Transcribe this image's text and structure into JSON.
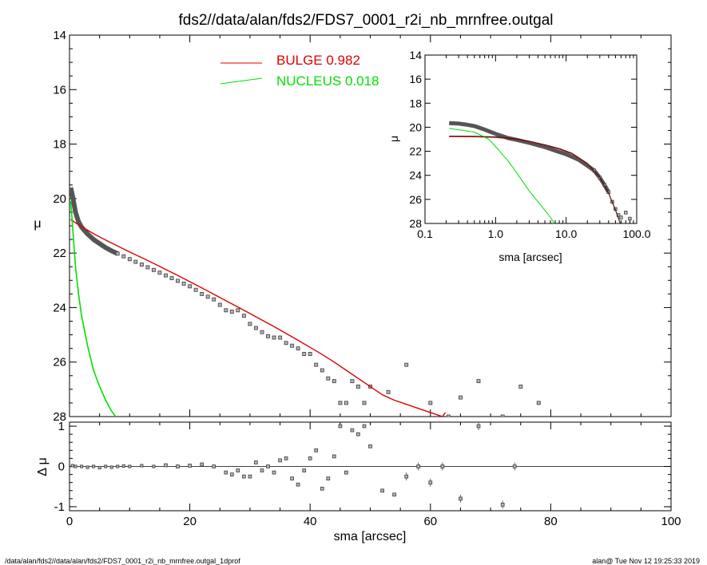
{
  "title": "fds2//data/alan/fds2/FDS7_0001_r2i_nb_mrnfree.outgal",
  "footer_left": "/data/alan/fds2//data/alan/fds2/FDS7_0001_r2i_nb_mrnfree.outgal_1dprof",
  "footer_right": "alan@  Tue Nov 12 19:25:33 2019",
  "colors": {
    "bulge": "#e00000",
    "nucleus": "#00e000",
    "data": "#666666"
  },
  "chart_data": [
    {
      "panel": "main",
      "type": "scatter",
      "xlabel": "sma [arcsec]",
      "ylabel": "μ",
      "xlim": [
        0,
        100
      ],
      "ylim": [
        28,
        14
      ],
      "xticks": [
        "0",
        "20",
        "40",
        "60",
        "80",
        "100"
      ],
      "yticks": [
        "14",
        "16",
        "18",
        "20",
        "22",
        "24",
        "26",
        "28"
      ],
      "legend": [
        {
          "name": "BULGE",
          "value": "0.982"
        },
        {
          "name": "NUCLEUS",
          "value": "0.018"
        }
      ],
      "bulge_model": {
        "x": [
          0.2,
          1,
          2,
          4,
          6,
          8,
          10,
          12,
          14,
          16,
          18,
          20,
          22,
          24,
          26,
          28,
          30,
          32,
          34,
          36,
          38,
          40,
          42,
          44,
          46,
          48,
          50,
          52,
          54,
          56,
          58,
          60,
          62,
          62.5
        ],
        "y": [
          20.77,
          20.89,
          21.03,
          21.29,
          21.52,
          21.74,
          21.96,
          22.17,
          22.38,
          22.6,
          22.82,
          23.05,
          23.28,
          23.51,
          23.75,
          23.98,
          24.22,
          24.46,
          24.7,
          24.95,
          25.2,
          25.46,
          25.72,
          26.0,
          26.3,
          26.6,
          26.9,
          27.2,
          27.4,
          27.55,
          27.7,
          27.85,
          28.0,
          27.85
        ]
      },
      "nucleus_model": {
        "x": [
          0.2,
          0.5,
          1,
          1.5,
          2,
          3,
          4,
          5,
          6,
          7,
          8
        ],
        "y": [
          20.1,
          21.0,
          22.5,
          23.5,
          24.3,
          25.4,
          26.3,
          26.9,
          27.4,
          27.8,
          28.1
        ]
      },
      "observed_profile": {
        "x": [
          0.2,
          0.5,
          1,
          1.5,
          2,
          3,
          4,
          5,
          6,
          7,
          8,
          9,
          10,
          11,
          12,
          13,
          14,
          15,
          16,
          17,
          18,
          19,
          20,
          21,
          22,
          23,
          24,
          25,
          26,
          27,
          28,
          29,
          30,
          31,
          32,
          33,
          34,
          35,
          36,
          37,
          38,
          39,
          40,
          41,
          42,
          43,
          44,
          45,
          46,
          47,
          48,
          49,
          50,
          53,
          56,
          60,
          63,
          65,
          68,
          72,
          75,
          78
        ],
        "y": [
          19.6,
          19.9,
          20.5,
          20.85,
          21.05,
          21.3,
          21.5,
          21.65,
          21.8,
          21.92,
          22.02,
          22.12,
          22.22,
          22.32,
          22.42,
          22.52,
          22.62,
          22.72,
          22.82,
          22.92,
          23.02,
          23.12,
          23.22,
          23.35,
          23.5,
          23.6,
          23.7,
          23.9,
          24.1,
          24.15,
          24.1,
          24.3,
          24.6,
          24.75,
          24.9,
          25.05,
          25.1,
          25.1,
          25.3,
          25.4,
          25.5,
          25.7,
          25.7,
          26.1,
          26.3,
          26.6,
          26.7,
          27.5,
          27.5,
          26.7,
          26.9,
          27.5,
          26.9,
          27.1,
          26.1,
          27.5,
          28.0,
          27.3,
          26.7,
          28.0,
          26.9,
          27.5
        ]
      }
    },
    {
      "panel": "residual",
      "type": "scatter",
      "xlim": [
        0,
        100
      ],
      "ylim": [
        -1.1,
        1.1
      ],
      "ylabel": "Δ μ",
      "yticks": [
        "-1",
        "0",
        "1"
      ],
      "x": [
        0.5,
        1,
        2,
        3,
        4,
        5,
        6,
        7,
        8,
        9,
        10,
        12,
        14,
        16,
        18,
        20,
        22,
        24,
        26,
        27,
        28,
        29,
        30,
        31,
        32,
        33,
        34,
        35,
        36,
        37,
        38,
        39,
        40,
        41,
        42,
        43,
        44,
        45,
        46,
        47,
        48,
        49,
        50,
        52,
        54,
        56,
        58,
        60,
        62,
        65,
        68,
        72,
        74
      ],
      "y": [
        0.02,
        0.0,
        0.0,
        -0.02,
        0.0,
        -0.03,
        0.0,
        -0.02,
        0.0,
        0.01,
        0.0,
        0.02,
        0.0,
        0.03,
        0.0,
        0.02,
        0.05,
        0.0,
        -0.15,
        -0.2,
        -0.1,
        -0.25,
        -0.25,
        0.1,
        -0.1,
        0.0,
        -0.15,
        0.15,
        0.2,
        -0.3,
        -0.45,
        -0.1,
        0.2,
        0.4,
        -0.55,
        -0.3,
        0.25,
        1.0,
        -0.15,
        0.9,
        0.8,
        1.0,
        0.5,
        -0.6,
        -0.7,
        -0.25,
        0.0,
        -0.4,
        0.0,
        -0.8,
        1.0,
        -0.95,
        0.0
      ]
    },
    {
      "panel": "inset",
      "type": "line",
      "xlabel": "sma [arcsec]",
      "ylabel": "μ",
      "xscale": "log",
      "xlim": [
        0.1,
        100
      ],
      "ylim": [
        28,
        14
      ],
      "xticks": [
        "0.1",
        "1.0",
        "10.0",
        "100.0"
      ],
      "yticks": [
        "14",
        "16",
        "18",
        "20",
        "22",
        "24",
        "26",
        "28"
      ],
      "bulge_model": {
        "x": [
          0.22,
          0.5,
          1,
          2,
          3,
          5,
          8,
          12,
          20,
          30,
          40,
          50,
          60
        ],
        "y": [
          20.78,
          20.8,
          20.85,
          21.02,
          21.2,
          21.5,
          21.82,
          22.2,
          23.05,
          24.2,
          25.5,
          26.9,
          28.2
        ]
      },
      "nucleus_model": {
        "x": [
          0.22,
          0.5,
          0.8,
          1,
          1.5,
          2,
          3,
          4,
          5,
          6,
          7
        ],
        "y": [
          20.1,
          20.4,
          21.0,
          21.6,
          22.8,
          23.8,
          25.3,
          26.2,
          26.9,
          27.5,
          28.1
        ]
      },
      "observed_profile": {
        "x": [
          0.22,
          0.3,
          0.4,
          0.5,
          0.7,
          1,
          1.5,
          2,
          3,
          4,
          5,
          7,
          10,
          15,
          20,
          25,
          30,
          35,
          40,
          45,
          50,
          55,
          60,
          70,
          80
        ],
        "y": [
          19.65,
          19.7,
          19.8,
          19.9,
          20.2,
          20.55,
          20.9,
          21.05,
          21.3,
          21.5,
          21.65,
          21.95,
          22.25,
          22.7,
          23.2,
          23.6,
          24.2,
          24.8,
          25.4,
          26.2,
          26.8,
          27.3,
          27.5,
          27.1,
          27.6
        ]
      }
    }
  ]
}
